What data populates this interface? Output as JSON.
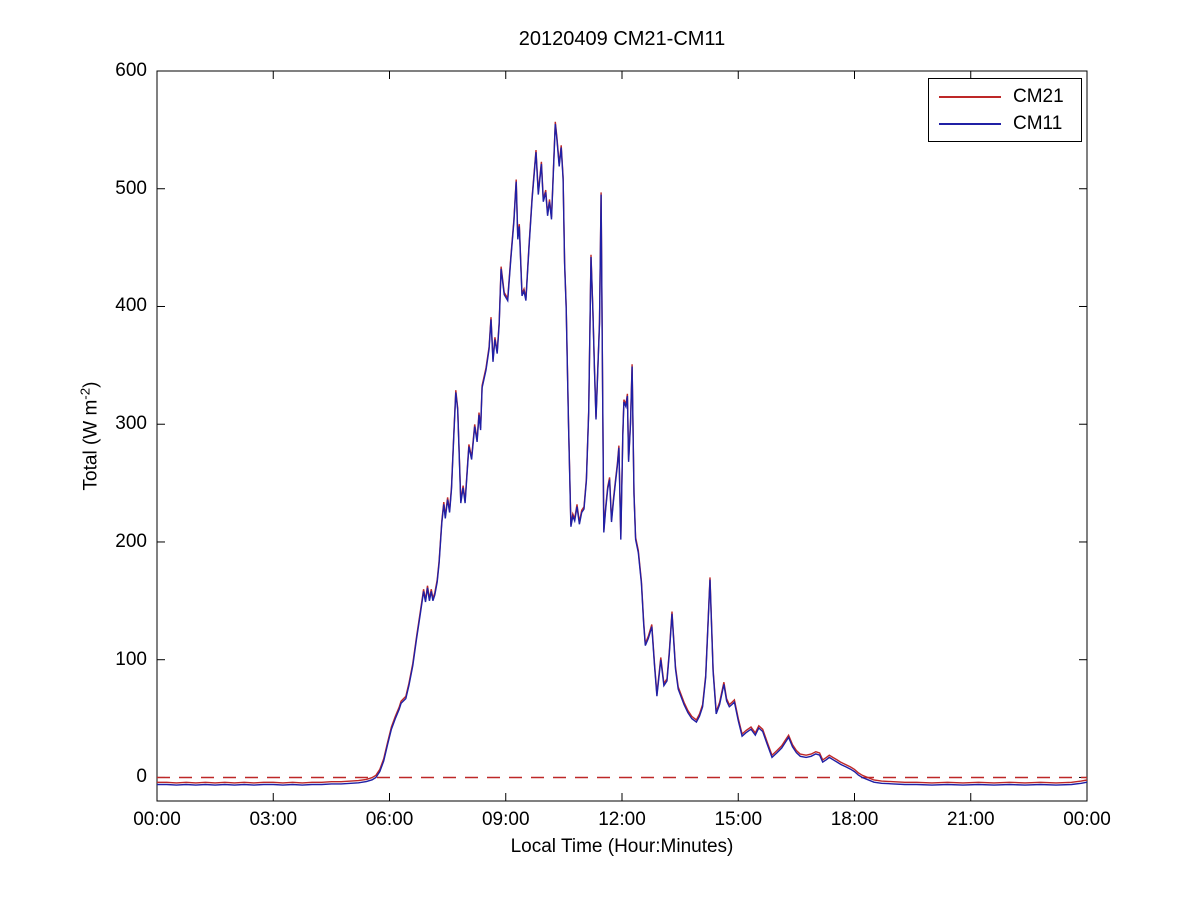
{
  "figure": {
    "background_color": "#ffffff",
    "axis_color": "#000000"
  },
  "chart_data": {
    "type": "line",
    "title": "20120409 CM21-CM11",
    "xlabel": "Local Time (Hour:Minutes)",
    "ylabel": "Total (W m^-2)",
    "ylabel_parts": {
      "prefix": "Total (W m",
      "sup": "-2",
      "suffix": ")"
    },
    "xlim_hours": [
      0,
      24
    ],
    "ylim": [
      -20,
      600
    ],
    "xtick_hours": [
      0,
      3,
      6,
      9,
      12,
      15,
      18,
      21,
      24
    ],
    "xtick_labels": [
      "00:00",
      "03:00",
      "06:00",
      "09:00",
      "12:00",
      "15:00",
      "18:00",
      "21:00",
      "00:00"
    ],
    "ytick_values": [
      0,
      100,
      200,
      300,
      400,
      500,
      600
    ],
    "ytick_labels": [
      "0",
      "100",
      "200",
      "300",
      "400",
      "500",
      "600"
    ],
    "grid": false,
    "legend": {
      "position": "top-right"
    },
    "zero_reference_line": {
      "y": 0,
      "color": "#be2828",
      "style": "dashed"
    },
    "series_note": "CM21 (red) and CM11 (blue) coincide almost exactly; CM11 is drawn over CM21 so red shows only at spike tips. A red dashed zero reference line spans the full day.",
    "series": [
      {
        "name": "CM21",
        "color": "#be2828",
        "style": "solid",
        "values_key": "points",
        "note": "coincides with CM11"
      },
      {
        "name": "CM11",
        "color": "#2020a5",
        "style": "solid",
        "values_key": "points"
      }
    ],
    "points": [
      [
        0,
        -6
      ],
      [
        0.25,
        -6
      ],
      [
        0.5,
        -6.5
      ],
      [
        0.75,
        -6
      ],
      [
        1,
        -6.5
      ],
      [
        1.25,
        -6
      ],
      [
        1.5,
        -6.5
      ],
      [
        1.75,
        -6
      ],
      [
        2,
        -6.5
      ],
      [
        2.25,
        -6
      ],
      [
        2.5,
        -6.5
      ],
      [
        2.75,
        -6
      ],
      [
        3,
        -6
      ],
      [
        3.25,
        -6.5
      ],
      [
        3.5,
        -6
      ],
      [
        3.75,
        -6.5
      ],
      [
        4,
        -6
      ],
      [
        4.25,
        -6
      ],
      [
        4.5,
        -5.5
      ],
      [
        4.75,
        -5.5
      ],
      [
        5,
        -5
      ],
      [
        5.2,
        -4.5
      ],
      [
        5.4,
        -3.5
      ],
      [
        5.55,
        -2
      ],
      [
        5.65,
        0
      ],
      [
        5.75,
        5
      ],
      [
        5.85,
        14
      ],
      [
        5.95,
        28
      ],
      [
        6.05,
        41
      ],
      [
        6.15,
        50
      ],
      [
        6.25,
        58
      ],
      [
        6.3,
        63
      ],
      [
        6.42,
        67
      ],
      [
        6.5,
        78
      ],
      [
        6.6,
        95
      ],
      [
        6.7,
        118
      ],
      [
        6.8,
        140
      ],
      [
        6.88,
        158
      ],
      [
        6.93,
        149
      ],
      [
        6.98,
        161
      ],
      [
        7.03,
        150
      ],
      [
        7.08,
        158
      ],
      [
        7.12,
        150
      ],
      [
        7.17,
        155
      ],
      [
        7.23,
        166
      ],
      [
        7.28,
        182
      ],
      [
        7.35,
        216
      ],
      [
        7.4,
        232
      ],
      [
        7.44,
        220
      ],
      [
        7.5,
        236
      ],
      [
        7.55,
        225
      ],
      [
        7.6,
        245
      ],
      [
        7.66,
        290
      ],
      [
        7.71,
        327
      ],
      [
        7.76,
        312
      ],
      [
        7.84,
        233
      ],
      [
        7.9,
        246
      ],
      [
        7.95,
        233
      ],
      [
        8.05,
        281
      ],
      [
        8.12,
        270
      ],
      [
        8.2,
        298
      ],
      [
        8.26,
        285
      ],
      [
        8.31,
        308
      ],
      [
        8.35,
        295
      ],
      [
        8.39,
        331
      ],
      [
        8.49,
        346
      ],
      [
        8.57,
        364
      ],
      [
        8.62,
        389
      ],
      [
        8.67,
        353
      ],
      [
        8.72,
        372
      ],
      [
        8.78,
        360
      ],
      [
        8.83,
        385
      ],
      [
        8.88,
        432
      ],
      [
        8.96,
        410
      ],
      [
        9.05,
        405
      ],
      [
        9.13,
        440
      ],
      [
        9.21,
        472
      ],
      [
        9.27,
        506
      ],
      [
        9.31,
        457
      ],
      [
        9.35,
        468
      ],
      [
        9.42,
        409
      ],
      [
        9.47,
        413
      ],
      [
        9.52,
        405
      ],
      [
        9.6,
        450
      ],
      [
        9.68,
        491
      ],
      [
        9.78,
        531
      ],
      [
        9.84,
        495
      ],
      [
        9.92,
        521
      ],
      [
        9.97,
        489
      ],
      [
        10.03,
        497
      ],
      [
        10.08,
        477
      ],
      [
        10.13,
        489
      ],
      [
        10.18,
        474
      ],
      [
        10.28,
        555
      ],
      [
        10.32,
        542
      ],
      [
        10.38,
        519
      ],
      [
        10.43,
        535
      ],
      [
        10.48,
        508
      ],
      [
        10.52,
        436
      ],
      [
        10.56,
        398
      ],
      [
        10.62,
        300
      ],
      [
        10.68,
        213
      ],
      [
        10.73,
        222
      ],
      [
        10.78,
        218
      ],
      [
        10.84,
        230
      ],
      [
        10.9,
        215
      ],
      [
        10.96,
        225
      ],
      [
        11.02,
        228
      ],
      [
        11.08,
        252
      ],
      [
        11.14,
        310
      ],
      [
        11.2,
        442
      ],
      [
        11.25,
        395
      ],
      [
        11.29,
        345
      ],
      [
        11.33,
        304
      ],
      [
        11.42,
        385
      ],
      [
        11.46,
        495
      ],
      [
        11.5,
        330
      ],
      [
        11.53,
        208
      ],
      [
        11.58,
        228
      ],
      [
        11.63,
        245
      ],
      [
        11.68,
        253
      ],
      [
        11.73,
        217
      ],
      [
        11.78,
        235
      ],
      [
        11.83,
        250
      ],
      [
        11.88,
        265
      ],
      [
        11.92,
        280
      ],
      [
        11.97,
        202
      ],
      [
        12.02,
        290
      ],
      [
        12.05,
        319
      ],
      [
        12.1,
        315
      ],
      [
        12.14,
        324
      ],
      [
        12.17,
        268
      ],
      [
        12.22,
        300
      ],
      [
        12.26,
        349
      ],
      [
        12.31,
        240
      ],
      [
        12.35,
        202
      ],
      [
        12.42,
        191
      ],
      [
        12.5,
        165
      ],
      [
        12.56,
        130
      ],
      [
        12.6,
        112
      ],
      [
        12.68,
        118
      ],
      [
        12.77,
        128
      ],
      [
        12.84,
        95
      ],
      [
        12.9,
        69
      ],
      [
        13,
        100
      ],
      [
        13.08,
        78
      ],
      [
        13.16,
        82
      ],
      [
        13.22,
        105
      ],
      [
        13.29,
        139
      ],
      [
        13.38,
        92
      ],
      [
        13.45,
        75
      ],
      [
        13.52,
        69
      ],
      [
        13.6,
        62
      ],
      [
        13.7,
        55
      ],
      [
        13.8,
        50
      ],
      [
        13.92,
        47
      ],
      [
        14,
        52
      ],
      [
        14.08,
        60
      ],
      [
        14.16,
        85
      ],
      [
        14.27,
        168
      ],
      [
        14.35,
        90
      ],
      [
        14.43,
        54
      ],
      [
        14.52,
        62
      ],
      [
        14.63,
        79
      ],
      [
        14.7,
        65
      ],
      [
        14.77,
        60
      ],
      [
        14.84,
        62
      ],
      [
        14.9,
        64
      ],
      [
        15,
        48
      ],
      [
        15.1,
        35
      ],
      [
        15.2,
        38
      ],
      [
        15.33,
        41
      ],
      [
        15.44,
        36
      ],
      [
        15.53,
        42
      ],
      [
        15.63,
        39
      ],
      [
        15.75,
        28
      ],
      [
        15.87,
        17
      ],
      [
        16,
        21
      ],
      [
        16.12,
        25
      ],
      [
        16.22,
        30
      ],
      [
        16.3,
        34
      ],
      [
        16.4,
        26
      ],
      [
        16.5,
        21
      ],
      [
        16.6,
        18
      ],
      [
        16.75,
        17
      ],
      [
        16.88,
        18
      ],
      [
        17,
        20
      ],
      [
        17.1,
        19
      ],
      [
        17.18,
        13
      ],
      [
        17.27,
        15
      ],
      [
        17.35,
        17
      ],
      [
        17.45,
        15
      ],
      [
        17.55,
        13
      ],
      [
        17.65,
        11
      ],
      [
        17.78,
        9
      ],
      [
        17.9,
        7
      ],
      [
        18,
        5
      ],
      [
        18.1,
        2
      ],
      [
        18.2,
        0
      ],
      [
        18.35,
        -2
      ],
      [
        18.5,
        -4
      ],
      [
        18.7,
        -5
      ],
      [
        19,
        -5.5
      ],
      [
        19.3,
        -6
      ],
      [
        19.6,
        -6
      ],
      [
        20,
        -6.5
      ],
      [
        20.4,
        -6
      ],
      [
        20.8,
        -6.5
      ],
      [
        21.2,
        -6
      ],
      [
        21.6,
        -6.5
      ],
      [
        22,
        -6
      ],
      [
        22.4,
        -6.5
      ],
      [
        22.8,
        -6
      ],
      [
        23.2,
        -6.5
      ],
      [
        23.6,
        -6
      ],
      [
        23.85,
        -5
      ],
      [
        24,
        -4
      ]
    ]
  }
}
